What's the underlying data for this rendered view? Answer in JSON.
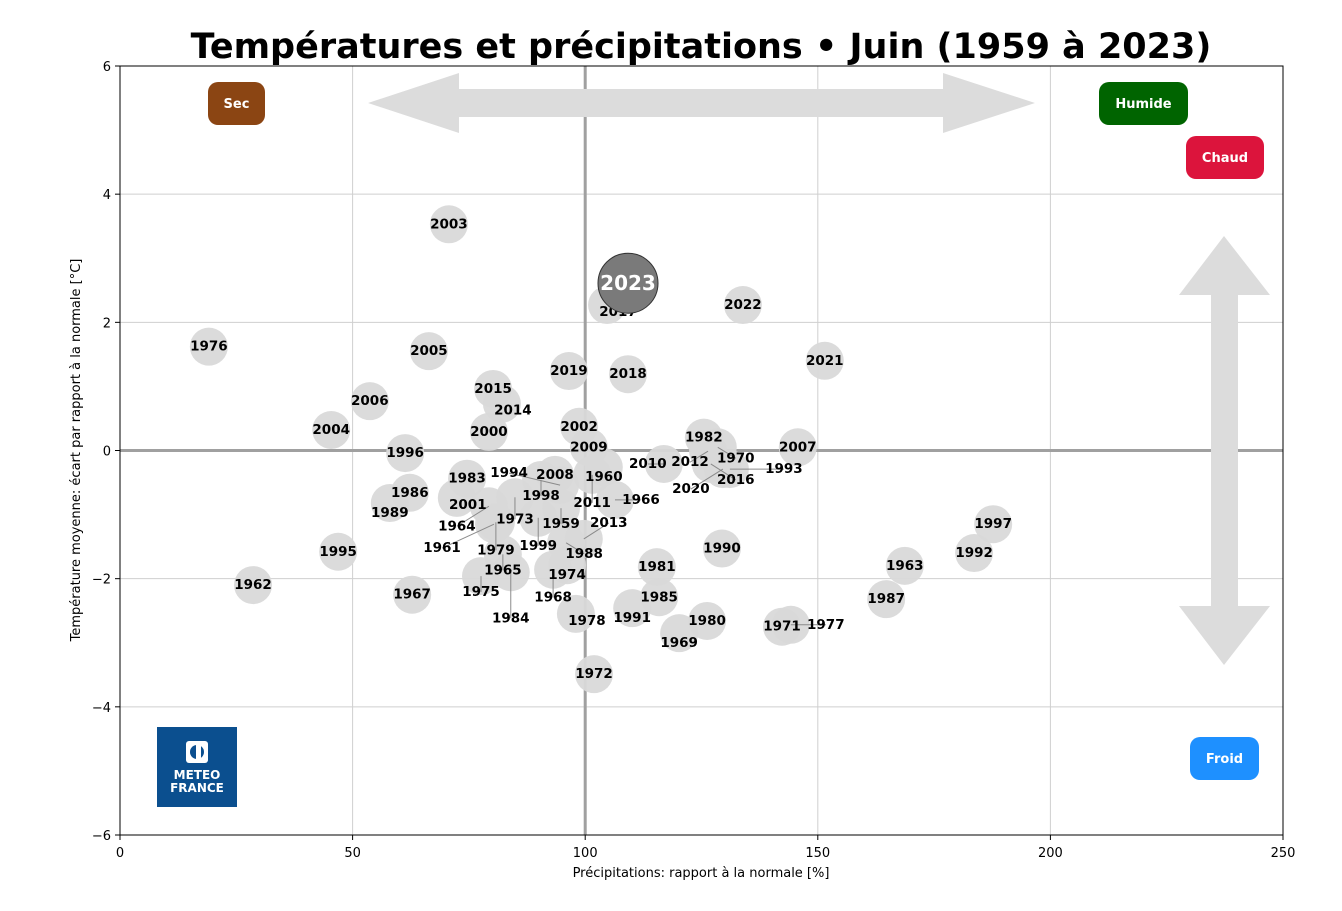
{
  "chart_data": {
    "type": "scatter",
    "title": "Températures et précipitations • Juin (1959 à 2023)",
    "xlabel": "Précipitations: rapport à la normale [%]",
    "ylabel": "Température moyenne: écart par rapport à la normale [°C]",
    "xlim": [
      0,
      250
    ],
    "ylim": [
      -6,
      6
    ],
    "xticks": [
      "0",
      "50",
      "100",
      "150",
      "200",
      "250"
    ],
    "yticks": [
      "−6",
      "−4",
      "−2",
      "0",
      "2",
      "4",
      "6"
    ],
    "grid": true,
    "reference_lines": {
      "x": 100,
      "y": 0
    },
    "highlight": "2023",
    "points": [
      {
        "label": "2023",
        "x": 109.2,
        "y": 2.61
      },
      {
        "label": "2017",
        "x": 104.7,
        "y": 2.27
      },
      {
        "label": "2022",
        "x": 133.9,
        "y": 2.27
      },
      {
        "label": "2003",
        "x": 70.7,
        "y": 3.53
      },
      {
        "label": "1976",
        "x": 19.1,
        "y": 1.62
      },
      {
        "label": "2005",
        "x": 66.4,
        "y": 1.55
      },
      {
        "label": "2021",
        "x": 151.5,
        "y": 1.4
      },
      {
        "label": "2019",
        "x": 96.5,
        "y": 1.24
      },
      {
        "label": "2018",
        "x": 109.2,
        "y": 1.19
      },
      {
        "label": "2015",
        "x": 80.2,
        "y": 0.96
      },
      {
        "label": "2014",
        "x": 82.1,
        "y": 0.73
      },
      {
        "label": "2006",
        "x": 53.7,
        "y": 0.77
      },
      {
        "label": "2004",
        "x": 45.4,
        "y": 0.32
      },
      {
        "label": "2000",
        "x": 79.3,
        "y": 0.29
      },
      {
        "label": "2002",
        "x": 98.7,
        "y": 0.37
      },
      {
        "label": "1996",
        "x": 61.3,
        "y": -0.04
      },
      {
        "label": "2009",
        "x": 100.8,
        "y": 0.05
      },
      {
        "label": "1982",
        "x": 125.5,
        "y": 0.2
      },
      {
        "label": "1970",
        "x": 128.5,
        "y": 0.05
      },
      {
        "label": "2012",
        "x": 126.4,
        "y": -0.01
      },
      {
        "label": "2007",
        "x": 145.7,
        "y": 0.05
      },
      {
        "label": "2010",
        "x": 116.9,
        "y": -0.21
      },
      {
        "label": "2016",
        "x": 127.0,
        "y": -0.21
      },
      {
        "label": "2020",
        "x": 129.6,
        "y": -0.29
      },
      {
        "label": "1993",
        "x": 131.1,
        "y": -0.29
      },
      {
        "label": "1960",
        "x": 104.0,
        "y": -0.26
      },
      {
        "label": "2008",
        "x": 93.5,
        "y": -0.38
      },
      {
        "label": "2011",
        "x": 101.5,
        "y": -0.38
      },
      {
        "label": "1998",
        "x": 90.5,
        "y": -0.46
      },
      {
        "label": "1994",
        "x": 94.6,
        "y": -0.54
      },
      {
        "label": "1983",
        "x": 74.6,
        "y": -0.44
      },
      {
        "label": "1986",
        "x": 62.3,
        "y": -0.66
      },
      {
        "label": "1989",
        "x": 58.0,
        "y": -0.82
      },
      {
        "label": "2001",
        "x": 72.4,
        "y": -0.74
      },
      {
        "label": "1973",
        "x": 84.9,
        "y": -0.73
      },
      {
        "label": "1964",
        "x": 79.3,
        "y": -0.87
      },
      {
        "label": "1966",
        "x": 106.4,
        "y": -0.77
      },
      {
        "label": "1959",
        "x": 94.8,
        "y": -0.9
      },
      {
        "label": "1999",
        "x": 89.9,
        "y": -1.05
      },
      {
        "label": "1979",
        "x": 80.8,
        "y": -1.12
      },
      {
        "label": "1961",
        "x": 80.4,
        "y": -1.15
      },
      {
        "label": "1997",
        "x": 187.7,
        "y": -1.15
      },
      {
        "label": "1988",
        "x": 95.9,
        "y": -1.44
      },
      {
        "label": "2013",
        "x": 99.7,
        "y": -1.38
      },
      {
        "label": "1990",
        "x": 129.4,
        "y": -1.53
      },
      {
        "label": "1995",
        "x": 46.9,
        "y": -1.58
      },
      {
        "label": "1992",
        "x": 183.6,
        "y": -1.6
      },
      {
        "label": "1965",
        "x": 82.3,
        "y": -1.62
      },
      {
        "label": "1974",
        "x": 96.1,
        "y": -1.79
      },
      {
        "label": "1968",
        "x": 93.1,
        "y": -1.86
      },
      {
        "label": "1981",
        "x": 115.4,
        "y": -1.82
      },
      {
        "label": "1963",
        "x": 168.7,
        "y": -1.8
      },
      {
        "label": "1975",
        "x": 77.6,
        "y": -1.96
      },
      {
        "label": "1984",
        "x": 84.0,
        "y": -1.9
      },
      {
        "label": "1962",
        "x": 28.6,
        "y": -2.1
      },
      {
        "label": "1967",
        "x": 62.8,
        "y": -2.25
      },
      {
        "label": "1985",
        "x": 115.9,
        "y": -2.29
      },
      {
        "label": "1987",
        "x": 164.7,
        "y": -2.32
      },
      {
        "label": "1991",
        "x": 110.1,
        "y": -2.46
      },
      {
        "label": "1978",
        "x": 98.0,
        "y": -2.55
      },
      {
        "label": "1980",
        "x": 126.2,
        "y": -2.66
      },
      {
        "label": "1971",
        "x": 142.3,
        "y": -2.75
      },
      {
        "label": "1977",
        "x": 144.2,
        "y": -2.72
      },
      {
        "label": "1969",
        "x": 120.2,
        "y": -2.85
      },
      {
        "label": "1972",
        "x": 101.9,
        "y": -3.49
      }
    ],
    "annotations": {
      "dry": {
        "label": "Sec",
        "color": "#8B4513"
      },
      "wet": {
        "label": "Humide",
        "color": "#006400"
      },
      "hot": {
        "label": "Chaud",
        "color": "#DC143C"
      },
      "cold": {
        "label": "Froid",
        "color": "#1E90FF"
      }
    },
    "colors": {
      "point": "#d9d9d9",
      "highlight": "#7a7a7a",
      "arrow": "#dcdcdc",
      "logo": "#0b4f8f"
    }
  },
  "logo": {
    "line1": "METEO",
    "line2": "FRANCE"
  }
}
